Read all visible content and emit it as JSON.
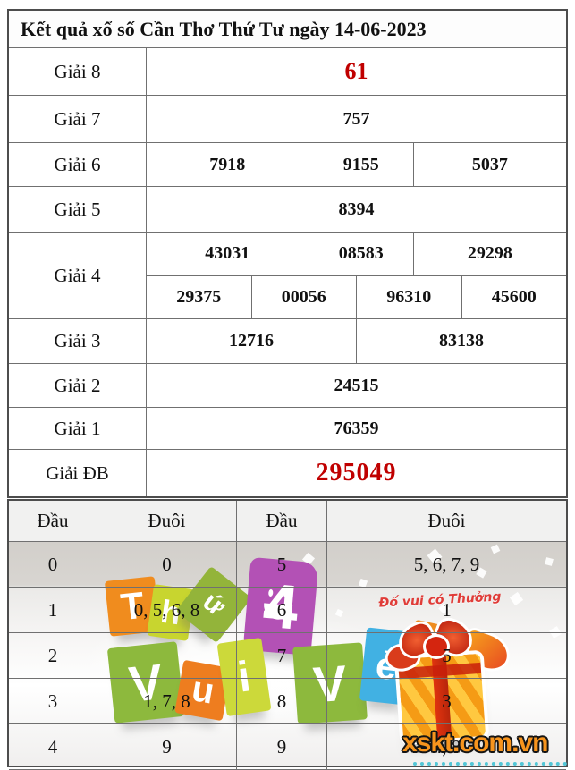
{
  "page": {
    "title": "Kết quả xổ số Cần Thơ Thứ Tư ngày 14-06-2023"
  },
  "results": {
    "g8": {
      "label": "Giải 8",
      "value": "61"
    },
    "g7": {
      "label": "Giải 7",
      "value": "757"
    },
    "g6": {
      "label": "Giải 6",
      "values": [
        "7918",
        "9155",
        "5037"
      ]
    },
    "g5": {
      "label": "Giải 5",
      "value": "8394"
    },
    "g4": {
      "label": "Giải 4",
      "row1": [
        "43031",
        "08583",
        "29298"
      ],
      "row2": [
        "29375",
        "00056",
        "96310",
        "45600"
      ]
    },
    "g3": {
      "label": "Giải 3",
      "values": [
        "12716",
        "83138"
      ]
    },
    "g2": {
      "label": "Giải 2",
      "value": "24515"
    },
    "g1": {
      "label": "Giải 1",
      "value": "76359"
    },
    "gdb": {
      "label": "Giải ĐB",
      "value": "295049"
    }
  },
  "tails": {
    "headers": [
      "Đầu",
      "Đuôi",
      "Đầu",
      "Đuôi"
    ],
    "rows": [
      {
        "dau1": "0",
        "duoi1": "0",
        "dau2": "5",
        "duoi2": "5, 6, 7, 9"
      },
      {
        "dau1": "1",
        "duoi1": "0, 5, 6, 8",
        "dau2": "6",
        "duoi2": "1"
      },
      {
        "dau1": "2",
        "duoi1": "",
        "dau2": "7",
        "duoi2": "5"
      },
      {
        "dau1": "3",
        "duoi1": "1, 7, 8",
        "dau2": "8",
        "duoi2": "3"
      },
      {
        "dau1": "4",
        "duoi1": "9",
        "dau2": "9",
        "duoi2": "4, 8"
      }
    ]
  },
  "decoration": {
    "letters": [
      "T",
      "h",
      "ứ",
      "4",
      "V",
      "u",
      "i",
      "V",
      "ẻ",
      "!"
    ],
    "promo_text": "Đố vui có Thưởng",
    "watermark": "xskt.com.vn",
    "colors": {
      "highlight_red": "#c00000",
      "watermark_orange": "#f7941d",
      "tile_orange": "#ee7d1f",
      "tile_green": "#8db93d",
      "tile_yellow_green": "#c8d52f",
      "tile_purple": "#b351b5",
      "tile_blue": "#41b1e3"
    }
  }
}
